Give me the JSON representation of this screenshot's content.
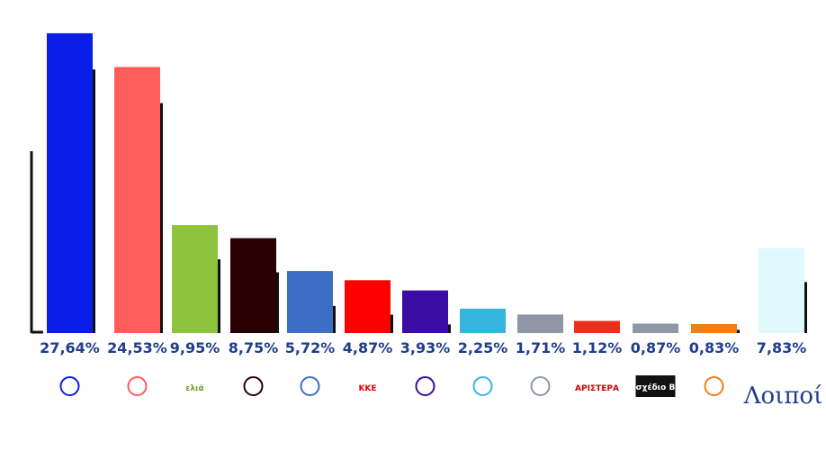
{
  "chart_data": {
    "type": "bar",
    "categories": [
      null,
      null,
      "ελιά",
      null,
      null,
      "ΚΚΕ",
      null,
      null,
      null,
      "ΑΡΙΣΤΕΡΑ",
      "σχέδιο Β",
      null,
      "Λοιποί"
    ],
    "series": [
      {
        "colors": [
          "#0a1ee8",
          "#ff5c5c",
          "#8cc43e",
          "#2a0002",
          "#3d6ec6",
          "#ff0000",
          "#3a0ca3",
          "#38b5df",
          "#9096a6",
          "#e8321c",
          "#9097a7",
          "#f07e1a",
          "#dff9fd"
        ],
        "values": [
          27.64,
          24.53,
          9.95,
          8.75,
          5.72,
          4.87,
          3.93,
          2.25,
          1.71,
          1.12,
          0.87,
          0.83,
          7.83
        ],
        "value_labels": [
          "27,64%",
          "24,53%",
          "9,95%",
          "8,75%",
          "5,72%",
          "4,87%",
          "3,93%",
          "2,25%",
          "1,71%",
          "1,12%",
          "0,87%",
          "0,83%",
          "7,83%"
        ]
      },
      {
        "color": "#111111",
        "values": [
          24.3,
          21.2,
          6.8,
          5.6,
          2.5,
          1.7,
          0.8,
          null,
          null,
          null,
          null,
          0.3,
          4.7
        ]
      }
    ],
    "ylim": [
      0,
      30
    ]
  }
}
